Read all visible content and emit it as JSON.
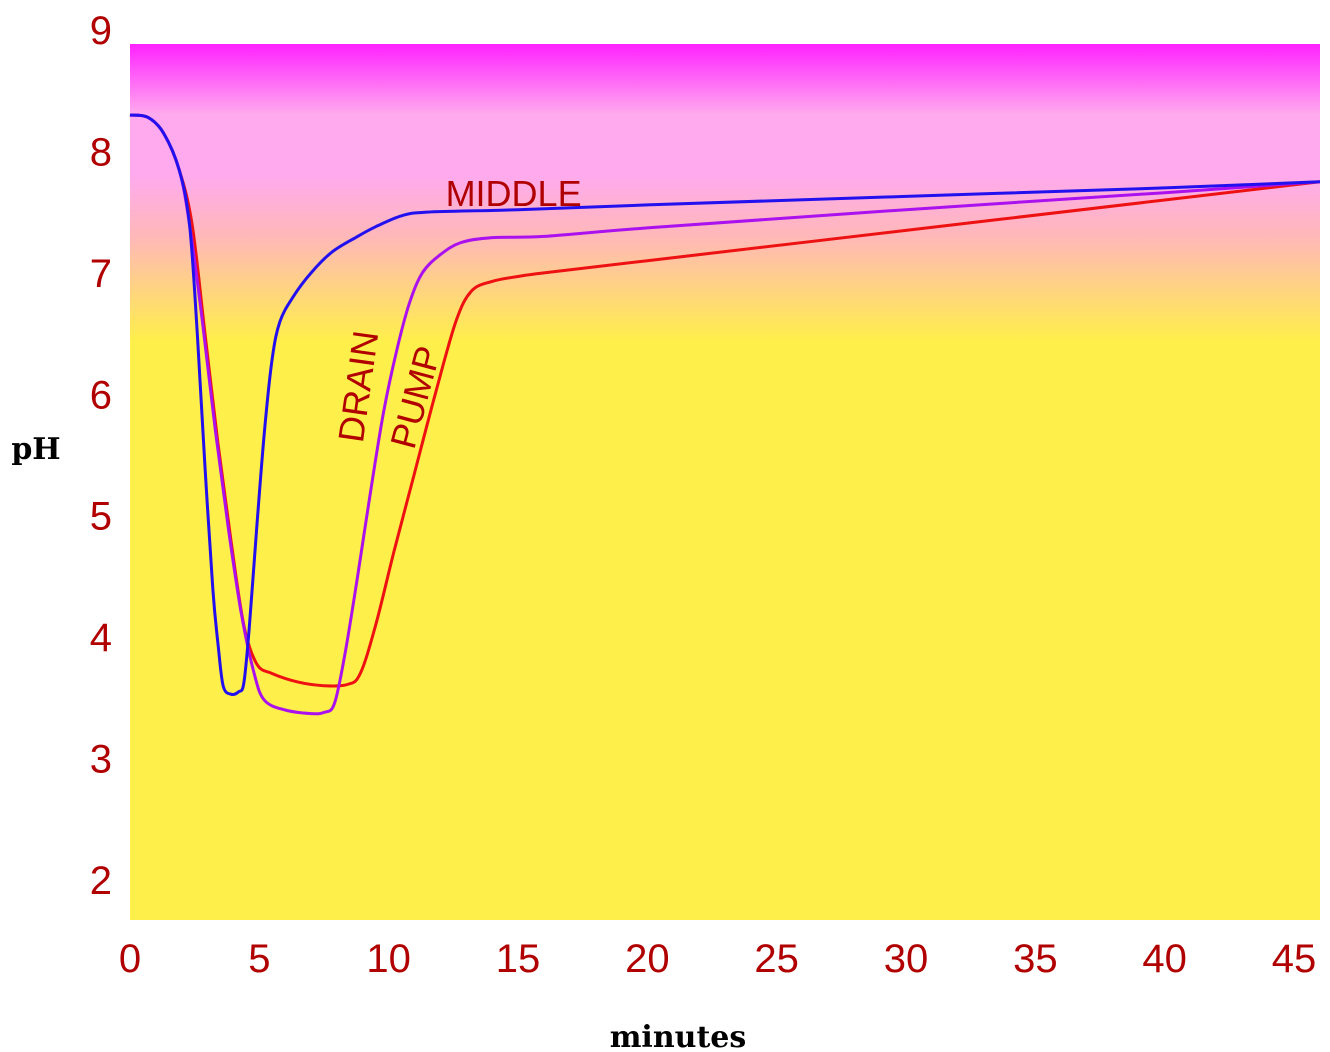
{
  "colors": {
    "text": "#b00000",
    "bg_top": "#ff22ff",
    "bg_mid": "#ffaaee",
    "bg_mid2": "#ffb8b8",
    "bg_bottom": "#ffef4a"
  },
  "chart_data": {
    "type": "line",
    "title": "",
    "xlabel": "minutes",
    "ylabel": "pH",
    "xlim": [
      0,
      46
    ],
    "ylim": [
      1.7,
      8.9
    ],
    "x_ticks": [
      0,
      5,
      10,
      15,
      20,
      25,
      30,
      35,
      40,
      45
    ],
    "y_ticks": [
      2,
      3,
      4,
      5,
      6,
      7,
      8,
      9
    ],
    "grid": false,
    "background": "vertical gradient magenta (top) to pink to yellow (bottom)",
    "series": [
      {
        "name": "MIDDLE",
        "color": "#2211ee",
        "points": [
          [
            0,
            8.3
          ],
          [
            0.7,
            8.28
          ],
          [
            1.3,
            8.15
          ],
          [
            1.9,
            7.85
          ],
          [
            2.3,
            7.4
          ],
          [
            2.6,
            6.5
          ],
          [
            2.9,
            5.4
          ],
          [
            3.2,
            4.4
          ],
          [
            3.4,
            3.95
          ],
          [
            3.6,
            3.6
          ],
          [
            3.9,
            3.53
          ],
          [
            4.2,
            3.55
          ],
          [
            4.4,
            3.62
          ],
          [
            4.6,
            4.05
          ],
          [
            4.9,
            4.9
          ],
          [
            5.2,
            5.7
          ],
          [
            5.5,
            6.3
          ],
          [
            5.8,
            6.6
          ],
          [
            6.3,
            6.8
          ],
          [
            7,
            7.0
          ],
          [
            7.8,
            7.17
          ],
          [
            8.8,
            7.3
          ],
          [
            9.5,
            7.38
          ],
          [
            10.5,
            7.47
          ],
          [
            11.5,
            7.5
          ],
          [
            15,
            7.52
          ],
          [
            20,
            7.56
          ],
          [
            30,
            7.63
          ],
          [
            40,
            7.7
          ],
          [
            46,
            7.75
          ]
        ]
      },
      {
        "name": "DRAIN",
        "color": "#aa11ee",
        "points": [
          [
            0,
            8.3
          ],
          [
            0.7,
            8.28
          ],
          [
            1.3,
            8.15
          ],
          [
            1.9,
            7.85
          ],
          [
            2.3,
            7.4
          ],
          [
            2.8,
            6.6
          ],
          [
            3.3,
            5.7
          ],
          [
            3.8,
            4.9
          ],
          [
            4.3,
            4.2
          ],
          [
            4.8,
            3.7
          ],
          [
            5.2,
            3.48
          ],
          [
            6,
            3.4
          ],
          [
            7,
            3.37
          ],
          [
            7.5,
            3.38
          ],
          [
            7.9,
            3.45
          ],
          [
            8.3,
            3.85
          ],
          [
            8.8,
            4.5
          ],
          [
            9.3,
            5.2
          ],
          [
            9.8,
            5.85
          ],
          [
            10.3,
            6.35
          ],
          [
            10.8,
            6.75
          ],
          [
            11.3,
            7.0
          ],
          [
            12,
            7.15
          ],
          [
            12.8,
            7.25
          ],
          [
            14,
            7.29
          ],
          [
            16,
            7.3
          ],
          [
            20,
            7.37
          ],
          [
            30,
            7.52
          ],
          [
            40,
            7.66
          ],
          [
            46,
            7.75
          ]
        ]
      },
      {
        "name": "PUMP",
        "color": "#ee1111",
        "points": [
          [
            0,
            8.3
          ],
          [
            0.7,
            8.28
          ],
          [
            1.3,
            8.15
          ],
          [
            1.9,
            7.85
          ],
          [
            2.4,
            7.4
          ],
          [
            2.9,
            6.5
          ],
          [
            3.4,
            5.6
          ],
          [
            3.9,
            4.8
          ],
          [
            4.4,
            4.1
          ],
          [
            4.9,
            3.78
          ],
          [
            5.5,
            3.7
          ],
          [
            6.5,
            3.63
          ],
          [
            7.5,
            3.6
          ],
          [
            8.4,
            3.61
          ],
          [
            8.9,
            3.7
          ],
          [
            9.5,
            4.1
          ],
          [
            10.2,
            4.7
          ],
          [
            11,
            5.35
          ],
          [
            11.8,
            6.0
          ],
          [
            12.6,
            6.6
          ],
          [
            13.2,
            6.85
          ],
          [
            14,
            6.93
          ],
          [
            15,
            6.97
          ],
          [
            16,
            7.0
          ],
          [
            20,
            7.1
          ],
          [
            30,
            7.35
          ],
          [
            40,
            7.6
          ],
          [
            46,
            7.75
          ]
        ]
      }
    ],
    "annotations": [
      {
        "text": "MIDDLE",
        "x": 12.2,
        "y": 7.55,
        "rotation": 0
      },
      {
        "text": "DRAIN",
        "x": 9.3,
        "y": 6.05,
        "rotation": -82
      },
      {
        "text": "PUMP",
        "x": 11.5,
        "y": 5.95,
        "rotation": -75
      }
    ]
  }
}
